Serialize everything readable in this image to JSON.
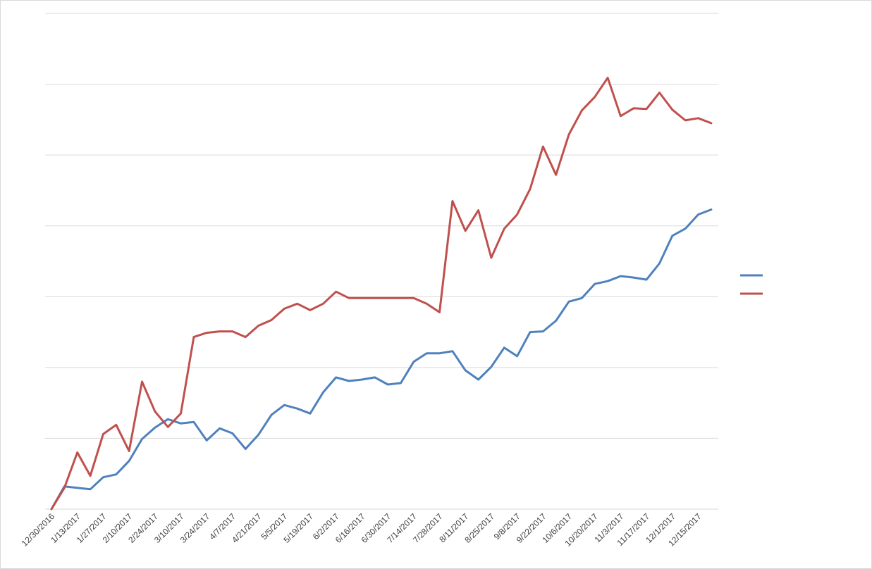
{
  "chart_data": {
    "type": "line",
    "title": "",
    "xlabel": "",
    "ylabel": "",
    "grid": true,
    "legend": "right",
    "ylim": [
      0,
      70
    ],
    "x": [
      "12/30/2016",
      "1/6/2017",
      "1/13/2017",
      "1/20/2017",
      "1/27/2017",
      "2/3/2017",
      "2/10/2017",
      "2/17/2017",
      "2/24/2017",
      "3/3/2017",
      "3/10/2017",
      "3/17/2017",
      "3/24/2017",
      "3/31/2017",
      "4/7/2017",
      "4/14/2017",
      "4/21/2017",
      "4/28/2017",
      "5/5/2017",
      "5/12/2017",
      "5/19/2017",
      "5/26/2017",
      "6/2/2017",
      "6/9/2017",
      "6/16/2017",
      "6/23/2017",
      "6/30/2017",
      "7/7/2017",
      "7/14/2017",
      "7/21/2017",
      "7/28/2017",
      "8/4/2017",
      "8/11/2017",
      "8/18/2017",
      "8/25/2017",
      "9/1/2017",
      "9/8/2017",
      "9/15/2017",
      "9/22/2017",
      "9/29/2017",
      "10/6/2017",
      "10/13/2017",
      "10/20/2017",
      "10/27/2017",
      "11/3/2017",
      "11/10/2017",
      "11/17/2017",
      "11/24/2017",
      "12/1/2017",
      "12/8/2017",
      "12/15/2017",
      "12/22/2017"
    ],
    "x_tick_labels": [
      "12/30/2016",
      "1/13/2017",
      "1/27/2017",
      "2/10/2017",
      "2/24/2017",
      "3/10/2017",
      "3/24/2017",
      "4/7/2017",
      "4/21/2017",
      "5/5/2017",
      "5/19/2017",
      "6/2/2017",
      "6/16/2017",
      "6/30/2017",
      "7/14/2017",
      "7/28/2017",
      "8/11/2017",
      "8/25/2017",
      "9/8/2017",
      "9/22/2017",
      "10/6/2017",
      "10/20/2017",
      "11/3/2017",
      "11/17/2017",
      "12/1/2017",
      "12/15/2017"
    ],
    "series": [
      {
        "color": "#4f81bd",
        "values": [
          0.0,
          3.2,
          3.0,
          2.8,
          4.5,
          4.9,
          6.8,
          9.9,
          11.5,
          12.7,
          12.1,
          12.3,
          9.7,
          11.4,
          10.7,
          8.5,
          10.5,
          13.3,
          14.7,
          14.2,
          13.5,
          16.5,
          18.6,
          18.1,
          18.3,
          18.6,
          17.6,
          17.8,
          20.8,
          22.0,
          22.0,
          22.3,
          19.6,
          18.3,
          20.1,
          22.8,
          21.6,
          25.0,
          25.1,
          26.6,
          29.3,
          29.8,
          31.8,
          32.2,
          32.9,
          32.7,
          32.4,
          34.7,
          38.6,
          39.6,
          41.6,
          42.3
        ]
      },
      {
        "color": "#c0504d",
        "values": [
          0.0,
          3.0,
          8.0,
          4.7,
          10.6,
          11.9,
          8.2,
          18.0,
          13.8,
          11.6,
          13.5,
          24.3,
          24.9,
          25.1,
          25.1,
          24.3,
          25.9,
          26.7,
          28.3,
          29.0,
          28.1,
          29.0,
          30.7,
          29.8,
          29.8,
          29.8,
          29.8,
          29.8,
          29.8,
          29.0,
          27.8,
          43.5,
          39.3,
          42.2,
          35.5,
          39.6,
          41.6,
          45.2,
          51.2,
          47.2,
          52.9,
          56.3,
          58.2,
          60.9,
          55.5,
          56.6,
          56.5,
          58.8,
          56.4,
          54.9,
          55.2,
          54.5
        ]
      }
    ]
  }
}
